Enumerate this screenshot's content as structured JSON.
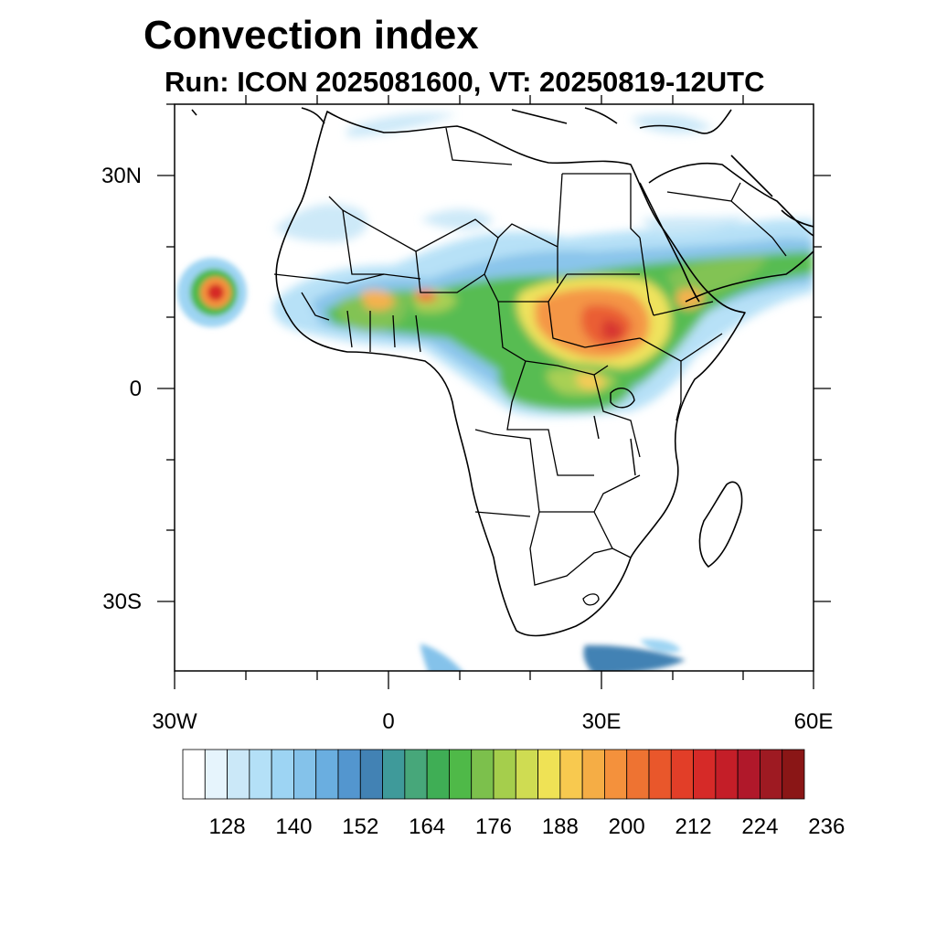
{
  "title": "Convection index",
  "subtitle": "Run: ICON 2025081600,  VT: 20250819-12UTC",
  "axes": {
    "lat_labels": [
      {
        "text": "30N",
        "value": 30
      },
      {
        "text": "0",
        "value": 0
      },
      {
        "text": "30S",
        "value": -30
      }
    ],
    "lon_labels": [
      {
        "text": "30W",
        "value": -30
      },
      {
        "text": "0",
        "value": 0
      },
      {
        "text": "30E",
        "value": 30
      },
      {
        "text": "60E",
        "value": 60
      }
    ],
    "lon_range": [
      -30,
      60
    ],
    "lat_range": [
      -40,
      40
    ]
  },
  "colorbar": {
    "colors": [
      "#ffffff",
      "#e6f4fc",
      "#cbe8f8",
      "#b4e0f7",
      "#9dd4f3",
      "#84c2ea",
      "#6aaee0",
      "#5396cf",
      "#4282b4",
      "#3f9a9a",
      "#47a77a",
      "#3fae55",
      "#4fb948",
      "#7cc04c",
      "#a5ce4c",
      "#cfdc52",
      "#efe255",
      "#f8c94f",
      "#f5ad45",
      "#f4913c",
      "#ee7332",
      "#e9572b",
      "#e23e28",
      "#d62a28",
      "#c41e28",
      "#b0182a",
      "#9e1a22",
      "#8a1616"
    ],
    "labels": [
      "128",
      "140",
      "152",
      "164",
      "176",
      "188",
      "200",
      "212",
      "224",
      "236"
    ]
  }
}
